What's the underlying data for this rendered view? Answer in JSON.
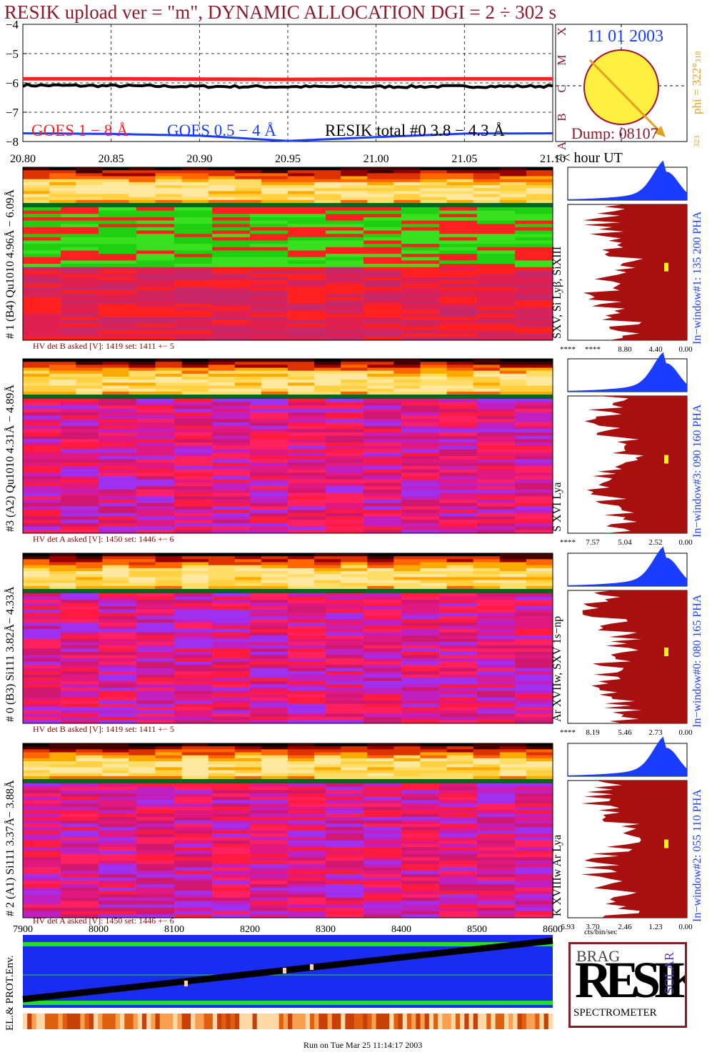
{
  "title": "RESIK upload ver = \"m\", DYNAMIC ALLOCATION  DGI =   2 ÷ 302 s",
  "colors": {
    "title": "#8b1a2b",
    "goes_long": "#ff2020",
    "goes_short": "#1a3cff",
    "resik": "#000000",
    "spectrum": "#a80f0f",
    "pha": "#1a3cff"
  },
  "lightcurve": {
    "yticks": [
      "−4",
      "−5",
      "−6",
      "−7",
      "−8"
    ],
    "xticks": [
      "20.80",
      "20.85",
      "20.90",
      "20.95",
      "21.00",
      "21.05",
      "21.10"
    ],
    "xunit": "<< hour UT",
    "legend_goes_long": "GOES 1 − 8 Å",
    "legend_goes_short": "GOES 0.5 − 4 Å",
    "legend_resik": "RESIK total #0  3.8 − 4.3 Å"
  },
  "chart_data": {
    "type": "line",
    "title": "RESIK upload ver = \"m\", DYNAMIC ALLOCATION  DGI =   2 ÷ 302 s",
    "xlabel": "<< hour UT",
    "ylabel": "",
    "xlim": [
      20.8,
      21.1
    ],
    "ylim": [
      -8,
      -4
    ],
    "grid": true,
    "x": [
      20.8,
      20.85,
      20.9,
      20.95,
      21.0,
      21.05,
      21.1
    ],
    "series": [
      {
        "name": "GOES 1 − 8 Å",
        "values": [
          -5.86,
          -5.86,
          -5.87,
          -5.88,
          -5.87,
          -5.86,
          -5.86
        ]
      },
      {
        "name": "GOES 0.5 − 4 Å",
        "values": [
          -7.72,
          -7.74,
          -7.8,
          -7.98,
          -7.85,
          -7.73,
          -7.72
        ]
      },
      {
        "name": "RESIK total #0  3.8 − 4.3 Å",
        "values": [
          -6.08,
          -6.1,
          -6.12,
          -6.13,
          -6.13,
          -6.12,
          -6.11
        ]
      }
    ]
  },
  "sun": {
    "date": "11 01 2003",
    "phi": "phi = 322°",
    "phi_sub": "318",
    "bottom_num": "323",
    "dump": "Dump: 08107",
    "letters": [
      "X",
      "M",
      "C",
      "B",
      "A"
    ]
  },
  "channels": [
    {
      "label": "# 1 (B4) Qu1010  4.96Å − 6.09Å",
      "line": "SXV, Si Lyβ, SiXIII",
      "hv": "HV det B asked [V]:  1419  set:  1411  +−    5",
      "win": "In−window#1:  135 200 PHA",
      "ticks": [
        "****",
        "****",
        "8.80",
        "4.40",
        "0.00"
      ]
    },
    {
      "label": "#3 (A2) Qu1010  4.31Å − 4.89Å",
      "line": "S XVI Lya",
      "hv": "HV det A asked [V]:  1450  set:  1446  +−    6",
      "win": "In−window#3:  090 160 PHA",
      "ticks": [
        "****",
        "7.57",
        "5.04",
        "2.52",
        "0.00"
      ]
    },
    {
      "label": "# 0 (B3) Si111  3.82Å− 4.33Å",
      "line": "Ar XVIIw,  SXV 1s−np",
      "hv": "HV det B asked [V]:  1419  set:  1411  +−    5",
      "win": "In−window#0:  080 165 PHA",
      "ticks": [
        "****",
        "8.19",
        "5.46",
        "2.73",
        "0.00"
      ]
    },
    {
      "label": "# 2 (A1) Si111  3.37Å− 3.88Å",
      "line": "K XVIIIw  Ar Lya",
      "hv": "HV det A asked [V]:  1450  set:  1446  +−    6",
      "win": "In−window#2:  055 110 PHA",
      "ticks": [
        "6.93",
        "3.70",
        "2.46",
        "1.23",
        "0.00"
      ]
    }
  ],
  "cts_unit": "cts/bin/sec",
  "bottom": {
    "xticks": [
      "7900",
      "8000",
      "8100",
      "8200",
      "8300",
      "8400",
      "8500",
      "8600"
    ],
    "ylabel": "EL.& PROT.Env."
  },
  "logo": {
    "letters": "RESIK",
    "small_top": "BRAG",
    "small_side": "SOLAR",
    "caption": "SPECTROMETER"
  },
  "footer": "Run on Tue Mar 25 11:14:17 2003"
}
